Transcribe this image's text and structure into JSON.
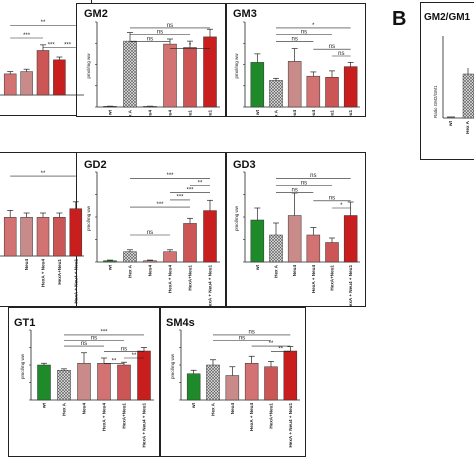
{
  "figure": {
    "panel_letter": "B",
    "ratio_title": "GM2/GM1",
    "ratio_ylabel": "Ratio GM2/GM1",
    "ratio_categories": [
      "wt",
      "Hex A"
    ]
  },
  "colors": {
    "wt": "#1f8a2a",
    "hexa": "#a8a8a8",
    "neu4": "#c98a8a",
    "hexa_neu4": "#d27272",
    "hexa_neu1": "#cc5555",
    "hexa_neu4_neu1": "#c81e1e",
    "pattern": "#555555"
  },
  "chart_data": [
    {
      "type": "bar",
      "title": "",
      "ylabel": "",
      "categories": [
        "",
        "",
        "",
        "",
        ""
      ],
      "values": [
        0.45,
        0.5,
        0.95,
        0.75,
        0
      ],
      "errors": [
        0.05,
        0.05,
        0.12,
        0.06,
        0
      ],
      "ylim": [
        0,
        1.6
      ],
      "sig": [
        {
          "from": 0,
          "to": 4,
          "label": "**",
          "level": 0.93
        },
        {
          "from": 0,
          "to": 2,
          "label": "***",
          "level": 0.76
        },
        {
          "from": 2,
          "to": 3,
          "label": "***",
          "level": 0.63
        },
        {
          "from": 3,
          "to": 4,
          "label": "***",
          "level": 0.63
        }
      ]
    },
    {
      "type": "bar",
      "title": "GM2",
      "ylabel": "pmol/mg ww",
      "categories": [
        "wt",
        "Hex A",
        "Neu4",
        "HexA + Neu4",
        "HexA+Neu1",
        "HexA + Neu4 + Neu1"
      ],
      "values": [
        15,
        1550,
        15,
        1480,
        1400,
        1650
      ],
      "errors": [
        5,
        200,
        5,
        120,
        150,
        180
      ],
      "ylim": [
        0,
        2000
      ],
      "sig": [
        {
          "from": 1,
          "to": 5,
          "label": "ns",
          "level": 0.93
        },
        {
          "from": 1,
          "to": 4,
          "label": "ns",
          "level": 0.85
        },
        {
          "from": 1,
          "to": 3,
          "label": "ns",
          "level": 0.77
        },
        {
          "from": 3,
          "to": 5,
          "label": "*",
          "level": 0.69
        }
      ]
    },
    {
      "type": "bar",
      "title": "GM3",
      "ylabel": "pmol/mg ww",
      "categories": [
        "wt",
        "Hex A",
        "Neu4",
        "HexA + Neu4",
        "HexA+Neu1",
        "HexA + Neu4 + Neu1"
      ],
      "values": [
        210,
        125,
        215,
        145,
        140,
        190
      ],
      "errors": [
        40,
        10,
        60,
        20,
        30,
        20
      ],
      "ylim": [
        0,
        400
      ],
      "sig": [
        {
          "from": 1,
          "to": 5,
          "label": "*",
          "level": 0.93
        },
        {
          "from": 1,
          "to": 4,
          "label": "ns",
          "level": 0.85
        },
        {
          "from": 1,
          "to": 3,
          "label": "ns",
          "level": 0.77
        },
        {
          "from": 3,
          "to": 5,
          "label": "ns",
          "level": 0.68
        },
        {
          "from": 4,
          "to": 5,
          "label": "ns",
          "level": 0.6
        }
      ]
    },
    {
      "type": "bar",
      "title": "",
      "ylabel": "",
      "categories": [
        "",
        "Neu4",
        "HexA + Neu4",
        "HexA+Neu1",
        "HexA + Neu4 + Neu1"
      ],
      "values": [
        45,
        45,
        45,
        45,
        55
      ],
      "errors": [
        8,
        5,
        5,
        5,
        8
      ],
      "ylim": [
        0,
        100
      ],
      "sig": [
        {
          "from": 0,
          "to": 4,
          "label": "**",
          "level": 0.93
        }
      ]
    },
    {
      "type": "bar",
      "title": "GD2",
      "ylabel": "pmol/mg ww",
      "categories": [
        "wt",
        "Hex A",
        "Neu4",
        "HexA + Neu4",
        "HexA+Neu1",
        "HexA + Neu4 + Neu1"
      ],
      "values": [
        1,
        8,
        1,
        8,
        30,
        40
      ],
      "errors": [
        0.5,
        1.5,
        0.5,
        1.5,
        4,
        8
      ],
      "ylim": [
        0,
        70
      ],
      "sig": [
        {
          "from": 1,
          "to": 5,
          "label": "***",
          "level": 0.93
        },
        {
          "from": 4,
          "to": 5,
          "label": "**",
          "level": 0.85
        },
        {
          "from": 3,
          "to": 5,
          "label": "***",
          "level": 0.77
        },
        {
          "from": 3,
          "to": 4,
          "label": "***",
          "level": 0.69
        },
        {
          "from": 1,
          "to": 4,
          "label": "***",
          "level": 0.61
        },
        {
          "from": 1,
          "to": 3,
          "label": "ns",
          "level": 0.3
        }
      ]
    },
    {
      "type": "bar",
      "title": "GD3",
      "ylabel": "pmol/mg ww",
      "categories": [
        "wt",
        "Hex A",
        "Neu4",
        "HexA + Neu4",
        "HexA+Neu1",
        "HexA + Neu4 + Neu1"
      ],
      "values": [
        28,
        18,
        31,
        18,
        13,
        31
      ],
      "errors": [
        8,
        8,
        15,
        5,
        3,
        9
      ],
      "ylim": [
        0,
        60
      ],
      "sig": [
        {
          "from": 1,
          "to": 5,
          "label": "ns",
          "level": 0.93
        },
        {
          "from": 1,
          "to": 4,
          "label": "ns",
          "level": 0.85
        },
        {
          "from": 1,
          "to": 3,
          "label": "ns",
          "level": 0.77
        },
        {
          "from": 3,
          "to": 5,
          "label": "ns",
          "level": 0.68
        },
        {
          "from": 4,
          "to": 5,
          "label": "*",
          "level": 0.6
        }
      ]
    },
    {
      "type": "bar",
      "title": "GT1",
      "ylabel": "pmol/mg ww",
      "categories": [
        "wt",
        "Hex A",
        "Neu4",
        "HexA + Neu4",
        "HexA+Neu1",
        "HexA + Neu4 + Neu1"
      ],
      "values": [
        1000,
        850,
        1050,
        1050,
        1000,
        1400
      ],
      "errors": [
        50,
        40,
        300,
        150,
        80,
        100
      ],
      "ylim": [
        0,
        2000
      ],
      "sig": [
        {
          "from": 1,
          "to": 5,
          "label": "***",
          "level": 0.93
        },
        {
          "from": 1,
          "to": 4,
          "label": "ns",
          "level": 0.85
        },
        {
          "from": 1,
          "to": 3,
          "label": "ns",
          "level": 0.77
        },
        {
          "from": 3,
          "to": 5,
          "label": "ns",
          "level": 0.69
        },
        {
          "from": 4,
          "to": 5,
          "label": "**",
          "level": 0.6
        },
        {
          "from": 3,
          "to": 4,
          "label": "**",
          "level": 0.52
        }
      ]
    },
    {
      "type": "bar",
      "title": "SM4s",
      "ylabel": "pmol/mg ww",
      "categories": [
        "wt",
        "Hex A",
        "Neu4",
        "HexA + Neu4",
        "HexA+Neu1",
        "HexA + Neu4 + Neu1"
      ],
      "values": [
        1500,
        2000,
        1400,
        2100,
        1900,
        2800
      ],
      "errors": [
        200,
        300,
        500,
        400,
        300,
        250
      ],
      "ylim": [
        0,
        4000
      ],
      "sig": [
        {
          "from": 1,
          "to": 5,
          "label": "ns",
          "level": 0.93
        },
        {
          "from": 1,
          "to": 4,
          "label": "ns",
          "level": 0.85
        },
        {
          "from": 3,
          "to": 5,
          "label": "**",
          "level": 0.77
        },
        {
          "from": 4,
          "to": 5,
          "label": "**",
          "level": 0.69
        }
      ]
    }
  ]
}
